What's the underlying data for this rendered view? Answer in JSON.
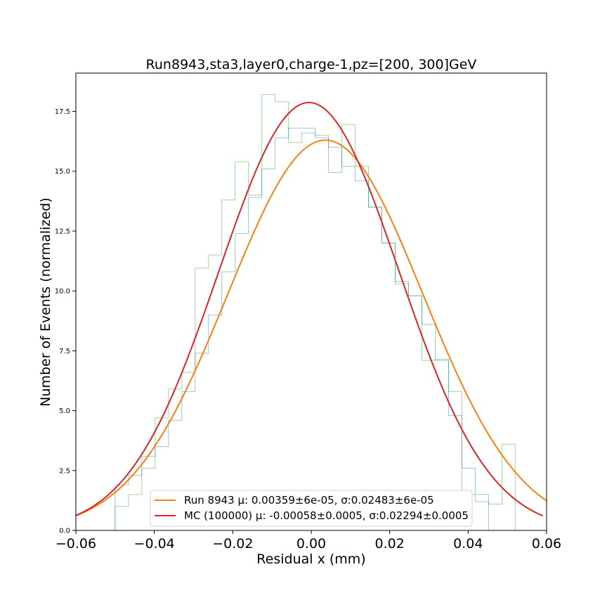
{
  "chart_data": {
    "type": "line",
    "title": "Run8943,sta3,layer0,charge-1,pz=[200, 300]GeV",
    "xlabel": "Residual x (mm)",
    "ylabel": "Number of Events (normalized)",
    "xlim": [
      -0.06,
      0.06
    ],
    "ylim": [
      0,
      19.1
    ],
    "x_ticks": [
      -0.06,
      -0.04,
      -0.02,
      0.0,
      0.02,
      0.04,
      0.06
    ],
    "x_tick_labels": [
      "−0.06",
      "−0.04",
      "−0.02",
      "0.00",
      "0.02",
      "0.04",
      "0.06"
    ],
    "y_ticks": [
      0.0,
      2.5,
      5.0,
      7.5,
      10.0,
      12.5,
      15.0,
      17.5
    ],
    "y_tick_labels": [
      "0.0",
      "2.5",
      "5.0",
      "7.5",
      "10.0",
      "12.5",
      "15.0",
      "17.5"
    ],
    "grid": false,
    "legend_position": "bottom-center",
    "colors": {
      "data_curve": "#ff7f0e",
      "mc_curve": "#d62728",
      "hist_data": "#2ca02c",
      "hist_mc": "#1f77b4"
    },
    "series": [
      {
        "name": "Run 8943 μ: 0.00359±6e-05, σ:0.02483±6e-05",
        "kind": "gaussian",
        "mu": 0.00359,
        "sigma": 0.02483,
        "peak": 16.3
      },
      {
        "name": "MC (100000) μ: -0.00058±0.0005, σ:0.02294±0.0005",
        "kind": "gaussian",
        "mu": -0.00058,
        "sigma": 0.02294,
        "peak": 17.87
      }
    ],
    "histograms": [
      {
        "series": "data",
        "bin_edges": [
          -0.05,
          -0.0466,
          -0.0432,
          -0.0398,
          -0.0364,
          -0.033,
          -0.0296,
          -0.0262,
          -0.0228,
          -0.0194,
          -0.016,
          -0.0126,
          -0.0092,
          -0.0058,
          -0.0024,
          0.001,
          0.0044,
          0.0078,
          0.0112,
          0.0146,
          0.018,
          0.0214,
          0.0248,
          0.0282,
          0.0316,
          0.035,
          0.0384,
          0.0418,
          0.0452,
          0.0486,
          0.052
        ],
        "counts": [
          1.0,
          1.5,
          2.6,
          4.7,
          5.9,
          6.6,
          10.95,
          11.5,
          13.8,
          15.4,
          14.0,
          18.2,
          17.9,
          16.2,
          16.6,
          16.5,
          14.95,
          16.95,
          15.2,
          13.5,
          12.0,
          10.3,
          9.8,
          7.1,
          7.15,
          5.8,
          1.5,
          1.2,
          1.1,
          3.6
        ]
      },
      {
        "series": "mc",
        "bin_edges": [
          -0.05,
          -0.0466,
          -0.0432,
          -0.0398,
          -0.0364,
          -0.033,
          -0.0296,
          -0.0262,
          -0.0228,
          -0.0194,
          -0.016,
          -0.0126,
          -0.0092,
          -0.0058,
          -0.0024,
          0.001,
          0.0044,
          0.0078,
          0.0112,
          0.0146,
          0.018,
          0.0214,
          0.0248,
          0.0282,
          0.0316,
          0.035,
          0.0384,
          0.0418,
          0.0452,
          0.0486,
          0.052
        ],
        "counts": [
          1.9,
          2.3,
          3.1,
          3.5,
          4.6,
          5.8,
          7.4,
          9.0,
          10.8,
          12.4,
          13.9,
          15.1,
          16.4,
          16.8,
          16.8,
          16.4,
          16.0,
          15.2,
          14.6,
          13.5,
          12.0,
          10.4,
          9.8,
          8.6,
          7.1,
          4.8,
          2.6,
          1.5,
          0.0,
          0.0
        ]
      }
    ]
  }
}
